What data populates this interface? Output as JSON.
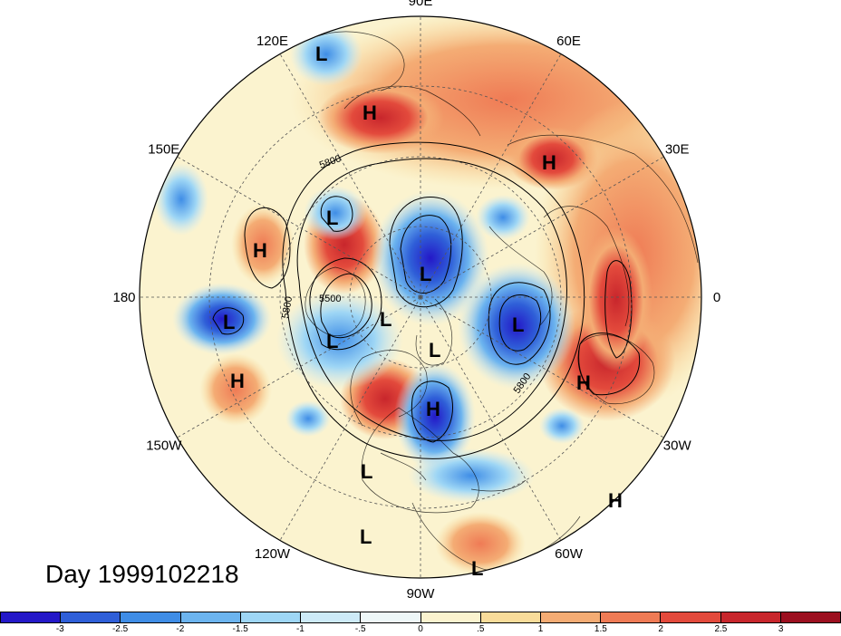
{
  "map": {
    "projection": "north polar stereographic",
    "longitude_labels": [
      "90E",
      "60E",
      "30E",
      "0",
      "30W",
      "60W",
      "90W",
      "120W",
      "150W",
      "180",
      "150E",
      "120E"
    ],
    "contour_labels": [
      "5800",
      "5500",
      "5800",
      "5800"
    ],
    "pressure_centers": [
      "L",
      "H",
      "H",
      "L",
      "H",
      "L",
      "H",
      "L",
      "L",
      "L",
      "L",
      "L",
      "H",
      "H",
      "L",
      "H",
      "L",
      "L",
      "H"
    ]
  },
  "title": {
    "prefix": "Day",
    "date": "1999102218"
  },
  "colorbar": {
    "tick_labels": [
      "-3",
      "-2.5",
      "-2",
      "-1.5",
      "-1",
      "-.5",
      "0",
      ".5",
      "1",
      "1.5",
      "2",
      "2.5",
      "3"
    ],
    "colors": [
      "#2418c8",
      "#2f5fd8",
      "#3f8de6",
      "#6cb4ef",
      "#9ed6f5",
      "#cdeaf7",
      "#eef7f8",
      "#fbf3cf",
      "#f9dc9a",
      "#f4ac74",
      "#ef7b55",
      "#e34a3c",
      "#c8262c",
      "#9c0f1f"
    ]
  }
}
